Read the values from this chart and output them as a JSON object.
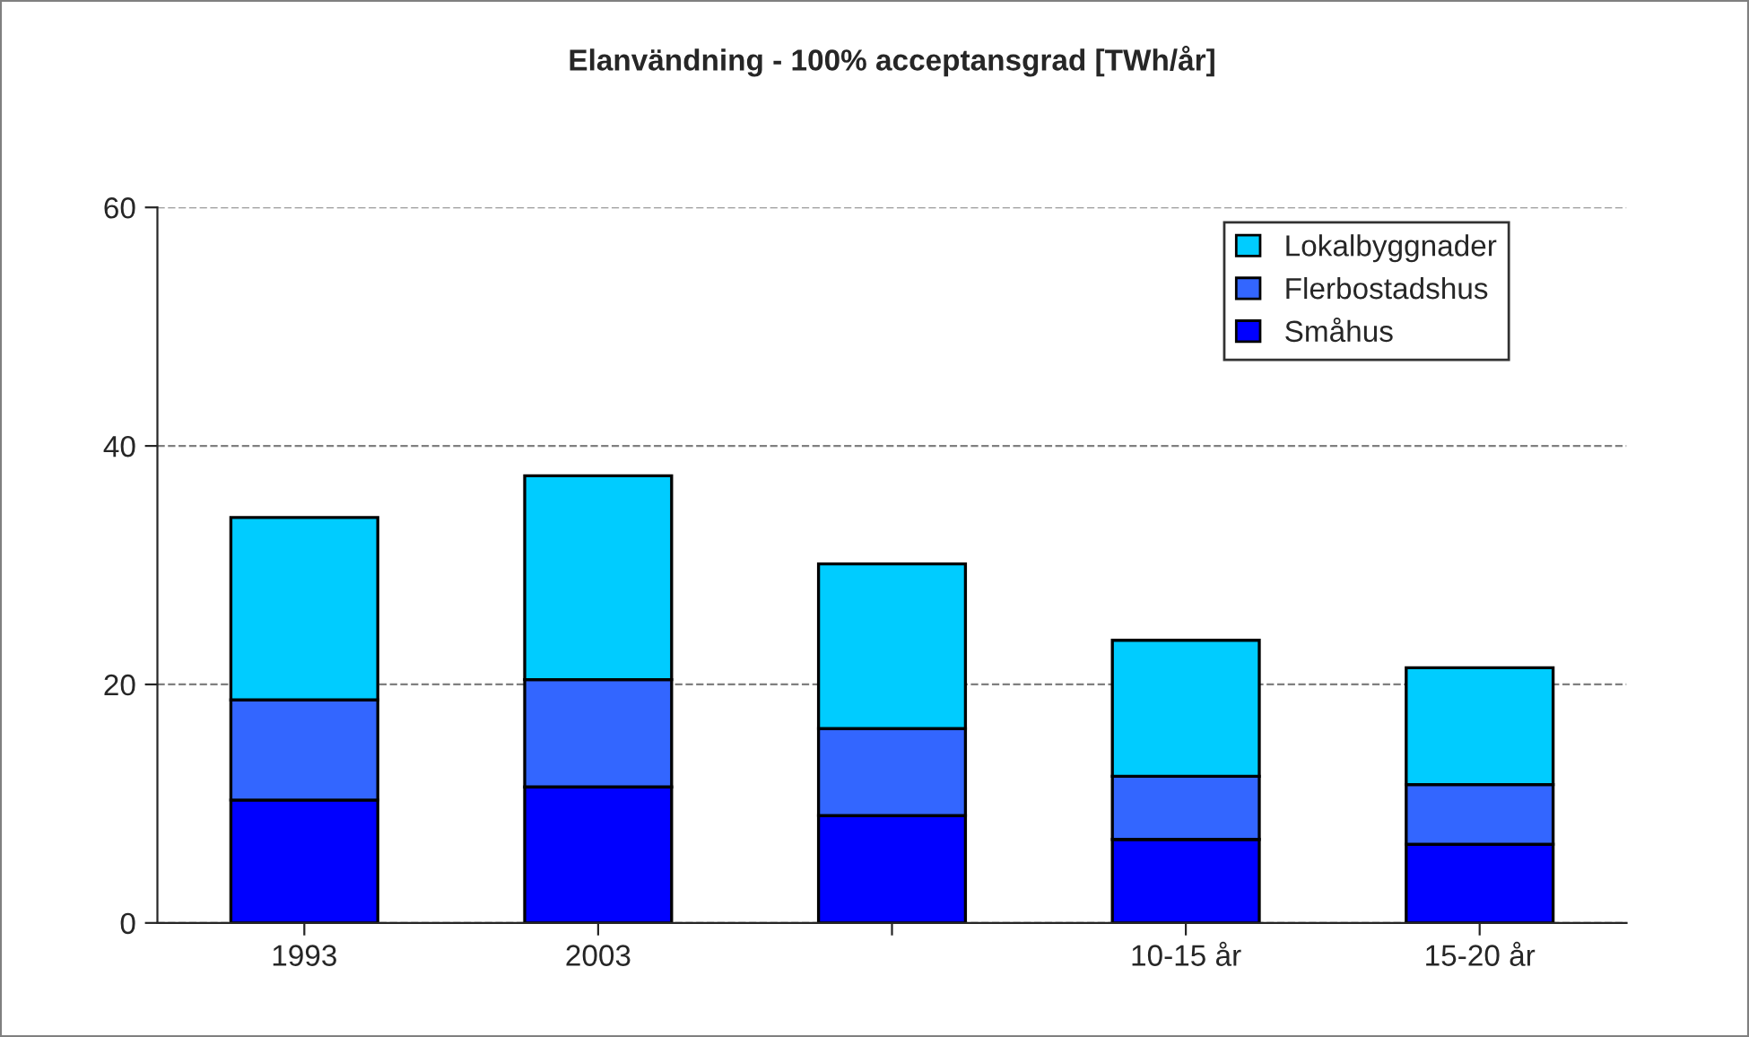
{
  "chart_data": {
    "type": "bar",
    "title": "Elanvändning - 100% acceptansgrad [TWh/år]",
    "categories": [
      "1993",
      "2003",
      null,
      "10-15 år",
      "15-20 år"
    ],
    "stacked": true,
    "series": [
      {
        "name": "Småhus",
        "color": "#0000ff",
        "values": [
          10.3,
          11.4,
          9.0,
          7.0,
          6.6
        ]
      },
      {
        "name": "Flerbostadshus",
        "color": "#3366ff",
        "values": [
          8.4,
          9.0,
          7.3,
          5.3,
          5.0
        ]
      },
      {
        "name": "Lokalbyggnader",
        "color": "#00ccff",
        "values": [
          15.3,
          17.1,
          13.8,
          11.4,
          9.8
        ]
      }
    ],
    "ylim": [
      0,
      60
    ],
    "yticks": [
      0,
      20,
      40,
      60
    ],
    "grid": "y",
    "legend": "top right"
  }
}
